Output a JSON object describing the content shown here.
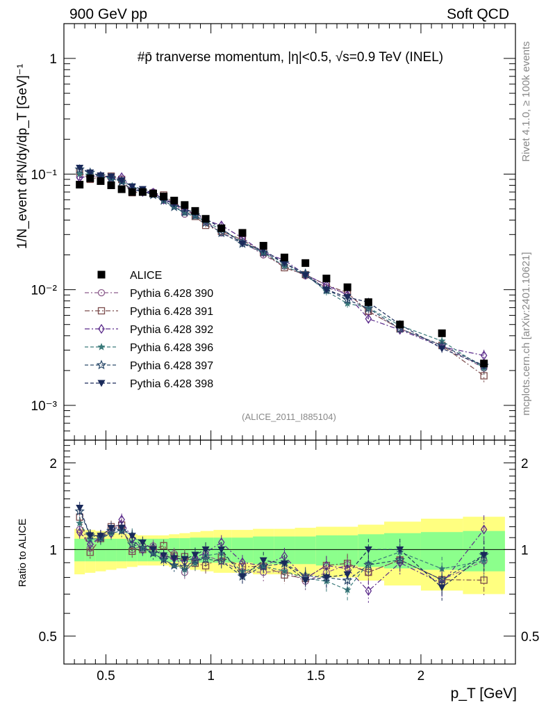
{
  "header": {
    "left": "900 GeV pp",
    "right": "Soft QCD"
  },
  "side_labels": {
    "rivet": "Rivet 4.1.0, ≥ 100k events",
    "mcplots": "mcplots.cern.ch [arXiv:2401.10621]"
  },
  "chart_data": {
    "type": "scatter",
    "title": "#p̄ tranverse momentum, |η|<0.5, √s=0.9 TeV (INEL)",
    "watermark": "(ALICE_2011_I885104)",
    "xlabel": "p_T [GeV]",
    "ylabel": "1/N_event d²N/dy/dp_T [GeV]⁻¹",
    "ratio_ylabel": "Ratio to ALICE",
    "xlim": [
      0.3,
      2.45
    ],
    "ylim": [
      0.0005,
      2.0
    ],
    "ratio_ylim": [
      0.4,
      2.4
    ],
    "x_ticks": [
      "0.5",
      "1",
      "1.5",
      "2"
    ],
    "y_ticks": [
      "10⁻³",
      "10⁻²",
      "10⁻¹",
      "1"
    ],
    "ratio_ticks": [
      "0.5",
      "1",
      "2"
    ],
    "x": [
      0.375,
      0.425,
      0.475,
      0.525,
      0.575,
      0.625,
      0.675,
      0.725,
      0.775,
      0.825,
      0.875,
      0.925,
      0.975,
      1.05,
      1.15,
      1.25,
      1.35,
      1.45,
      1.55,
      1.65,
      1.75,
      1.9,
      2.1,
      2.3
    ],
    "legend": [
      "ALICE",
      "Pythia 6.428 390",
      "Pythia 6.428 391",
      "Pythia 6.428 392",
      "Pythia 6.428 396",
      "Pythia 6.428 397",
      "Pythia 6.428 398"
    ],
    "data": {
      "name": "ALICE",
      "values": [
        0.081,
        0.092,
        0.087,
        0.08,
        0.074,
        0.07,
        0.07,
        0.068,
        0.064,
        0.059,
        0.054,
        0.048,
        0.041,
        0.034,
        0.031,
        0.024,
        0.019,
        0.017,
        0.0125,
        0.0105,
        0.0078,
        0.005,
        0.0042,
        0.0023
      ],
      "band_inner": [
        0.09,
        0.09,
        0.09,
        0.09,
        0.09,
        0.09,
        0.09,
        0.09,
        0.09,
        0.095,
        0.095,
        0.1,
        0.1,
        0.1,
        0.1,
        0.11,
        0.11,
        0.11,
        0.12,
        0.12,
        0.13,
        0.14,
        0.15,
        0.16
      ],
      "band_outer": [
        0.18,
        0.17,
        0.16,
        0.15,
        0.14,
        0.13,
        0.12,
        0.12,
        0.12,
        0.13,
        0.14,
        0.15,
        0.16,
        0.17,
        0.17,
        0.18,
        0.18,
        0.19,
        0.2,
        0.2,
        0.22,
        0.25,
        0.28,
        0.3
      ]
    },
    "series": [
      {
        "name": "Pythia 6.428 390",
        "color": "#8a5a8a",
        "marker": "circle-open",
        "dash": "6,3,2,3",
        "values": [
          0.095,
          0.093,
          0.097,
          0.092,
          0.088,
          0.07,
          0.072,
          0.07,
          0.061,
          0.057,
          0.045,
          0.044,
          0.039,
          0.031,
          0.026,
          0.02,
          0.016,
          0.0132,
          0.0104,
          0.0093,
          0.0065,
          0.0046,
          0.0033,
          0.0021
        ],
        "ratio_err": [
          0.05,
          0.05,
          0.05,
          0.05,
          0.05,
          0.05,
          0.05,
          0.05,
          0.05,
          0.05,
          0.06,
          0.06,
          0.06,
          0.06,
          0.06,
          0.07,
          0.07,
          0.07,
          0.08,
          0.08,
          0.09,
          0.09,
          0.1,
          0.12
        ]
      },
      {
        "name": "Pythia 6.428 391",
        "color": "#7a4a4a",
        "marker": "square-open",
        "dash": "7,3,2,3",
        "values": [
          0.105,
          0.09,
          0.095,
          0.096,
          0.09,
          0.069,
          0.07,
          0.068,
          0.066,
          0.056,
          0.051,
          0.043,
          0.036,
          0.032,
          0.027,
          0.021,
          0.0155,
          0.0135,
          0.011,
          0.0094,
          0.0065,
          0.0046,
          0.0033,
          0.0018
        ],
        "ratio_err": [
          0.05,
          0.05,
          0.05,
          0.05,
          0.05,
          0.05,
          0.05,
          0.05,
          0.05,
          0.05,
          0.06,
          0.06,
          0.06,
          0.06,
          0.06,
          0.07,
          0.07,
          0.07,
          0.08,
          0.08,
          0.09,
          0.09,
          0.1,
          0.12
        ]
      },
      {
        "name": "Pythia 6.428 392",
        "color": "#5a2a8a",
        "marker": "diamond-open",
        "dash": "7,3,2,3",
        "values": [
          0.093,
          0.096,
          0.096,
          0.091,
          0.094,
          0.076,
          0.07,
          0.069,
          0.06,
          0.055,
          0.049,
          0.045,
          0.04,
          0.036,
          0.028,
          0.021,
          0.018,
          0.0135,
          0.011,
          0.009,
          0.0056,
          0.0045,
          0.0032,
          0.0027
        ],
        "ratio_err": [
          0.05,
          0.05,
          0.05,
          0.05,
          0.05,
          0.05,
          0.05,
          0.05,
          0.05,
          0.05,
          0.06,
          0.06,
          0.06,
          0.06,
          0.06,
          0.07,
          0.07,
          0.07,
          0.08,
          0.08,
          0.09,
          0.09,
          0.1,
          0.12
        ]
      },
      {
        "name": "Pythia 6.428 396",
        "color": "#3a7a7a",
        "marker": "star-small",
        "dash": "5,3",
        "values": [
          0.1,
          0.1,
          0.095,
          0.091,
          0.086,
          0.079,
          0.071,
          0.066,
          0.059,
          0.052,
          0.046,
          0.043,
          0.039,
          0.033,
          0.026,
          0.021,
          0.016,
          0.0135,
          0.0097,
          0.0076,
          0.007,
          0.0049,
          0.0036,
          0.0021
        ],
        "ratio_err": [
          0.05,
          0.05,
          0.05,
          0.05,
          0.05,
          0.05,
          0.05,
          0.05,
          0.05,
          0.05,
          0.06,
          0.06,
          0.06,
          0.06,
          0.06,
          0.07,
          0.07,
          0.07,
          0.08,
          0.08,
          0.09,
          0.09,
          0.1,
          0.12
        ]
      },
      {
        "name": "Pythia 6.428 397",
        "color": "#2a4a6a",
        "marker": "star-open",
        "dash": "5,3",
        "values": [
          0.11,
          0.103,
          0.096,
          0.093,
          0.086,
          0.073,
          0.071,
          0.066,
          0.059,
          0.052,
          0.047,
          0.044,
          0.038,
          0.031,
          0.025,
          0.021,
          0.017,
          0.0138,
          0.01,
          0.0082,
          0.0069,
          0.0046,
          0.0033,
          0.0022
        ],
        "ratio_err": [
          0.05,
          0.05,
          0.05,
          0.05,
          0.05,
          0.05,
          0.05,
          0.05,
          0.05,
          0.05,
          0.06,
          0.06,
          0.06,
          0.06,
          0.06,
          0.07,
          0.07,
          0.07,
          0.08,
          0.08,
          0.09,
          0.09,
          0.1,
          0.12
        ]
      },
      {
        "name": "Pythia 6.428 398",
        "color": "#1a2a5a",
        "marker": "triangle-down",
        "dash": "5,3",
        "values": [
          0.113,
          0.103,
          0.097,
          0.095,
          0.088,
          0.078,
          0.074,
          0.068,
          0.061,
          0.055,
          0.05,
          0.046,
          0.041,
          0.034,
          0.025,
          0.022,
          0.017,
          0.0133,
          0.01,
          0.0086,
          0.0078,
          0.005,
          0.0031,
          0.0022
        ],
        "ratio_err": [
          0.05,
          0.05,
          0.05,
          0.05,
          0.05,
          0.05,
          0.05,
          0.05,
          0.05,
          0.05,
          0.06,
          0.06,
          0.06,
          0.06,
          0.06,
          0.07,
          0.07,
          0.07,
          0.08,
          0.08,
          0.09,
          0.09,
          0.1,
          0.12
        ]
      }
    ]
  }
}
